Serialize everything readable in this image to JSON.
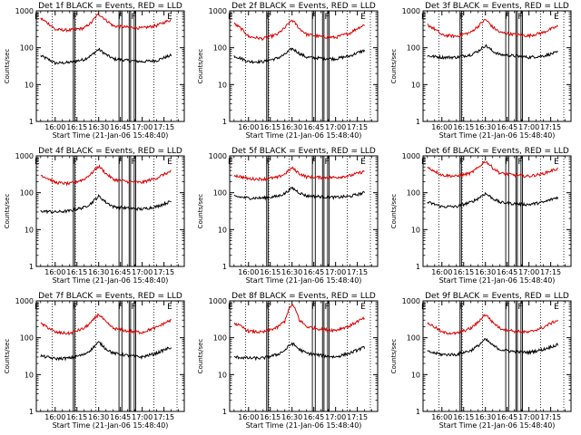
{
  "colors": {
    "events": "#000000",
    "lld": "#dd0000",
    "background": "#ffffff"
  },
  "chart_data": {
    "type": "line",
    "grid": false,
    "legend": "none (described in panel titles)",
    "x_ticks": [
      "16:00",
      "16:15",
      "16:30",
      "16:45",
      "17:00",
      "17:15"
    ],
    "x_minutes": [
      0,
      15,
      30,
      45,
      60,
      75
    ],
    "xlim_minutes": [
      -13,
      89
    ],
    "xlabel": "Start Time (21-Jan-06 15:48:40)",
    "ylabel": "Counts/sec",
    "ylim": [
      1,
      1000
    ],
    "yscale": "log",
    "y_ticks": [
      "1",
      "10",
      "100",
      "1000"
    ],
    "y_tick_values": [
      1,
      10,
      100,
      1000
    ],
    "dotted_lines_minutes": [
      -2,
      14,
      28,
      68,
      84
    ],
    "solid_lines_minutes": [
      12.5,
      13.5,
      44,
      46,
      51,
      52,
      54.5,
      55.5
    ],
    "markers": [
      {
        "label": "E",
        "minute": -12.5
      },
      {
        "label": "F",
        "minute": 13.5
      },
      {
        "label": "F",
        "minute": 45
      },
      {
        "label": "F",
        "minute": 54
      },
      {
        "label": "E",
        "minute": 79
      }
    ],
    "panels": [
      {
        "title": "Det 1f BLACK = Events, RED = LLD",
        "series": [
          {
            "name": "Events",
            "x": [
              -10,
              0,
              10,
              20,
              25,
              30,
              35,
              40,
              50,
              60,
              70,
              80
            ],
            "y": [
              60,
              38,
              40,
              48,
              62,
              90,
              65,
              50,
              45,
              42,
              45,
              62
            ]
          },
          {
            "name": "LLD",
            "x": [
              -10,
              0,
              10,
              20,
              25,
              30,
              35,
              40,
              50,
              60,
              70,
              80
            ],
            "y": [
              620,
              310,
              300,
              340,
              480,
              820,
              560,
              390,
              360,
              340,
              400,
              570
            ]
          }
        ]
      },
      {
        "title": "Det 2f BLACK = Events, RED = LLD",
        "series": [
          {
            "name": "Events",
            "x": [
              -10,
              0,
              10,
              20,
              25,
              30,
              35,
              40,
              50,
              60,
              70,
              80
            ],
            "y": [
              60,
              42,
              42,
              52,
              65,
              95,
              70,
              55,
              52,
              50,
              60,
              85
            ]
          },
          {
            "name": "LLD",
            "x": [
              -10,
              0,
              10,
              20,
              25,
              30,
              35,
              40,
              50,
              60,
              70,
              80
            ],
            "y": [
              450,
              200,
              175,
              230,
              340,
              560,
              330,
              230,
              200,
              190,
              250,
              420
            ]
          }
        ]
      },
      {
        "title": "Det 3f BLACK = Events, RED = LLD",
        "series": [
          {
            "name": "Events",
            "x": [
              -10,
              0,
              10,
              20,
              25,
              30,
              35,
              40,
              50,
              60,
              70,
              80
            ],
            "y": [
              60,
              55,
              55,
              65,
              80,
              115,
              80,
              65,
              60,
              55,
              60,
              75
            ]
          },
          {
            "name": "LLD",
            "x": [
              -10,
              0,
              10,
              20,
              25,
              30,
              35,
              40,
              50,
              60,
              70,
              80
            ],
            "y": [
              420,
              220,
              205,
              260,
              380,
              580,
              360,
              260,
              230,
              210,
              260,
              380
            ]
          }
        ]
      },
      {
        "title": "Det 4f BLACK = Events, RED = LLD",
        "series": [
          {
            "name": "Events",
            "x": [
              -10,
              0,
              10,
              20,
              25,
              30,
              35,
              40,
              50,
              60,
              70,
              80
            ],
            "y": [
              32,
              30,
              32,
              40,
              52,
              80,
              55,
              42,
              38,
              36,
              42,
              58
            ]
          },
          {
            "name": "LLD",
            "x": [
              -10,
              0,
              10,
              20,
              25,
              30,
              35,
              40,
              50,
              60,
              70,
              80
            ],
            "y": [
              300,
              190,
              175,
              230,
              330,
              520,
              330,
              230,
              200,
              190,
              250,
              380
            ]
          }
        ]
      },
      {
        "title": "Det 5f BLACK = Events, RED = LLD",
        "series": [
          {
            "name": "Events",
            "x": [
              -10,
              0,
              10,
              20,
              25,
              30,
              35,
              40,
              50,
              60,
              70,
              80
            ],
            "y": [
              80,
              72,
              72,
              80,
              95,
              135,
              100,
              82,
              78,
              75,
              80,
              100
            ]
          },
          {
            "name": "LLD",
            "x": [
              -10,
              0,
              10,
              20,
              25,
              30,
              35,
              40,
              50,
              60,
              70,
              80
            ],
            "y": [
              300,
              240,
              235,
              260,
              320,
              470,
              330,
              270,
              260,
              260,
              290,
              380
            ]
          }
        ]
      },
      {
        "title": "Det 6f BLACK = Events, RED = LLD",
        "series": [
          {
            "name": "Events",
            "x": [
              -10,
              0,
              10,
              20,
              25,
              30,
              35,
              40,
              50,
              60,
              70,
              80
            ],
            "y": [
              55,
              42,
              42,
              55,
              70,
              95,
              70,
              55,
              50,
              48,
              55,
              75
            ]
          },
          {
            "name": "LLD",
            "x": [
              -10,
              0,
              10,
              20,
              25,
              30,
              35,
              40,
              50,
              60,
              70,
              80
            ],
            "y": [
              480,
              300,
              280,
              340,
              470,
              720,
              470,
              340,
              300,
              280,
              330,
              450
            ]
          }
        ]
      },
      {
        "title": "Det 7f BLACK = Events, RED = LLD",
        "series": [
          {
            "name": "Events",
            "x": [
              -10,
              0,
              10,
              20,
              25,
              30,
              35,
              40,
              50,
              60,
              70,
              80
            ],
            "y": [
              32,
              27,
              28,
              35,
              48,
              75,
              50,
              38,
              33,
              30,
              38,
              55
            ]
          },
          {
            "name": "LLD",
            "x": [
              -10,
              0,
              10,
              20,
              25,
              30,
              35,
              40,
              50,
              60,
              70,
              80
            ],
            "y": [
              240,
              140,
              130,
              180,
              260,
              430,
              260,
              180,
              150,
              140,
              190,
              300
            ]
          }
        ]
      },
      {
        "title": "Det 8f BLACK = Events, RED = LLD",
        "series": [
          {
            "name": "Events",
            "x": [
              -10,
              0,
              10,
              20,
              25,
              30,
              35,
              40,
              50,
              60,
              70,
              80
            ],
            "y": [
              30,
              28,
              28,
              35,
              45,
              70,
              48,
              38,
              33,
              30,
              38,
              55
            ]
          },
          {
            "name": "LLD",
            "x": [
              -10,
              0,
              10,
              20,
              25,
              30,
              35,
              40,
              50,
              60,
              70,
              80
            ],
            "y": [
              250,
              150,
              140,
              190,
              280,
              800,
              300,
              200,
              170,
              160,
              210,
              340
            ]
          }
        ]
      },
      {
        "title": "Det 9f BLACK = Events, RED = LLD",
        "series": [
          {
            "name": "Events",
            "x": [
              -10,
              0,
              10,
              20,
              25,
              30,
              35,
              40,
              50,
              60,
              70,
              80
            ],
            "y": [
              42,
              35,
              35,
              45,
              60,
              90,
              62,
              48,
              42,
              40,
              48,
              65
            ]
          },
          {
            "name": "LLD",
            "x": [
              -10,
              0,
              10,
              20,
              25,
              30,
              35,
              40,
              50,
              60,
              70,
              80
            ],
            "y": [
              250,
              140,
              130,
              180,
              260,
              430,
              260,
              180,
              150,
              140,
              190,
              300
            ]
          }
        ]
      }
    ]
  }
}
